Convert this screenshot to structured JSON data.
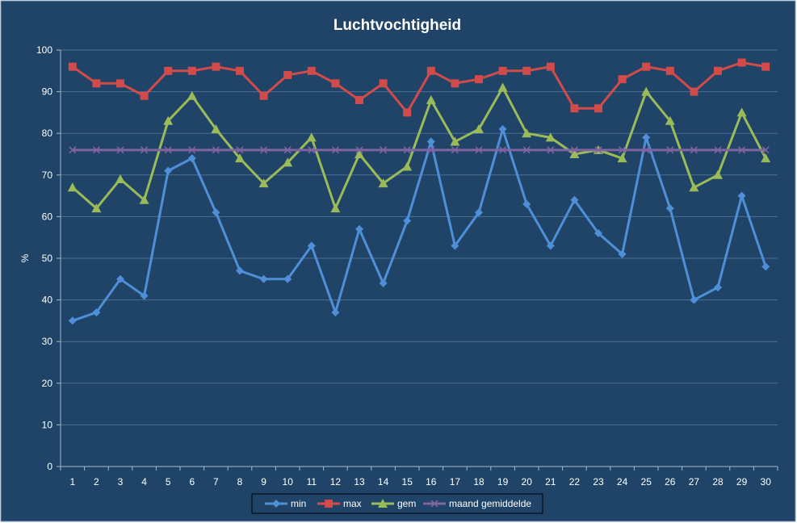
{
  "chart_data": {
    "type": "line",
    "title": "Luchtvochtigheid",
    "xlabel": "",
    "ylabel": "%",
    "ylim": [
      0,
      100
    ],
    "ytick_step": 10,
    "grid": true,
    "legend_position": "bottom",
    "background": "#1f4468",
    "categories": [
      "1",
      "2",
      "3",
      "4",
      "5",
      "6",
      "7",
      "8",
      "9",
      "10",
      "11",
      "12",
      "13",
      "14",
      "15",
      "16",
      "17",
      "18",
      "19",
      "20",
      "21",
      "22",
      "23",
      "24",
      "25",
      "26",
      "27",
      "28",
      "29",
      "30"
    ],
    "series": [
      {
        "name": "min",
        "color": "#4f8fd8",
        "marker": "diamond",
        "values": [
          35,
          37,
          45,
          41,
          71,
          74,
          61,
          47,
          45,
          45,
          53,
          37,
          57,
          44,
          59,
          78,
          53,
          61,
          81,
          63,
          53,
          64,
          56,
          51,
          79,
          62,
          40,
          43,
          65,
          48
        ]
      },
      {
        "name": "max",
        "color": "#d24b4b",
        "marker": "square",
        "values": [
          96,
          92,
          92,
          89,
          95,
          95,
          96,
          95,
          89,
          94,
          95,
          92,
          88,
          92,
          85,
          95,
          92,
          93,
          95,
          95,
          96,
          86,
          86,
          93,
          96,
          95,
          90,
          95,
          97,
          96
        ]
      },
      {
        "name": "gem",
        "color": "#9bbb59",
        "marker": "triangle",
        "values": [
          67,
          62,
          69,
          64,
          83,
          89,
          81,
          74,
          68,
          73,
          79,
          62,
          75,
          68,
          72,
          88,
          78,
          81,
          91,
          80,
          79,
          75,
          76,
          74,
          90,
          83,
          67,
          70,
          85,
          74
        ]
      },
      {
        "name": "maand gemiddelde",
        "color": "#8064a2",
        "marker": "x",
        "values": [
          76,
          76,
          76,
          76,
          76,
          76,
          76,
          76,
          76,
          76,
          76,
          76,
          76,
          76,
          76,
          76,
          76,
          76,
          76,
          76,
          76,
          76,
          76,
          76,
          76,
          76,
          76,
          76,
          76,
          76
        ]
      }
    ]
  }
}
